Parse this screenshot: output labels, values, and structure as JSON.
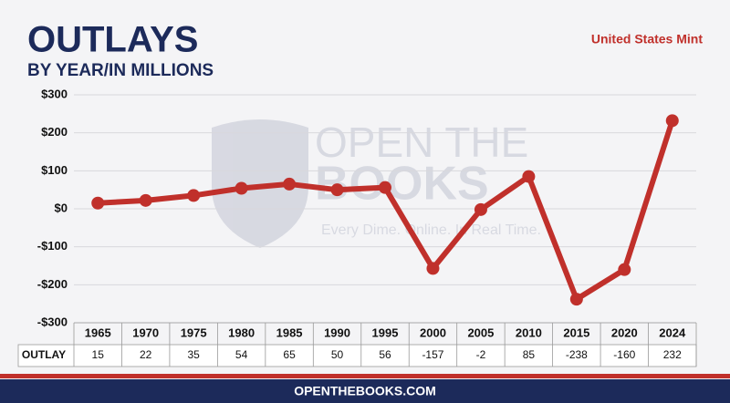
{
  "chart_data": {
    "type": "line",
    "title": "OUTLAYS",
    "subtitle": "BY YEAR/IN MILLIONS",
    "source": "United States Mint",
    "watermark": [
      "OPEN THE",
      "BOOKS",
      "Every Dime. Online. In Real Time."
    ],
    "footer": "OPENTHEBOOKS.COM",
    "categories": [
      "1965",
      "1970",
      "1975",
      "1980",
      "1985",
      "1990",
      "1995",
      "2000",
      "2005",
      "2010",
      "2015",
      "2020",
      "2024"
    ],
    "series": [
      {
        "name": "OUTLAY",
        "color": "#c0302b",
        "values": [
          15,
          22,
          35,
          54,
          65,
          50,
          56,
          -157,
          -2,
          85,
          -238,
          -160,
          232
        ]
      }
    ],
    "ylim": [
      -300,
      300
    ],
    "yticks": [
      {
        "value": -300,
        "label": "-$300"
      },
      {
        "value": -200,
        "label": "-$200"
      },
      {
        "value": -100,
        "label": "-$100"
      },
      {
        "value": 0,
        "label": "$0"
      },
      {
        "value": 100,
        "label": "$100"
      },
      {
        "value": 200,
        "label": "$200"
      },
      {
        "value": 300,
        "label": "$300"
      }
    ],
    "grid": true
  }
}
